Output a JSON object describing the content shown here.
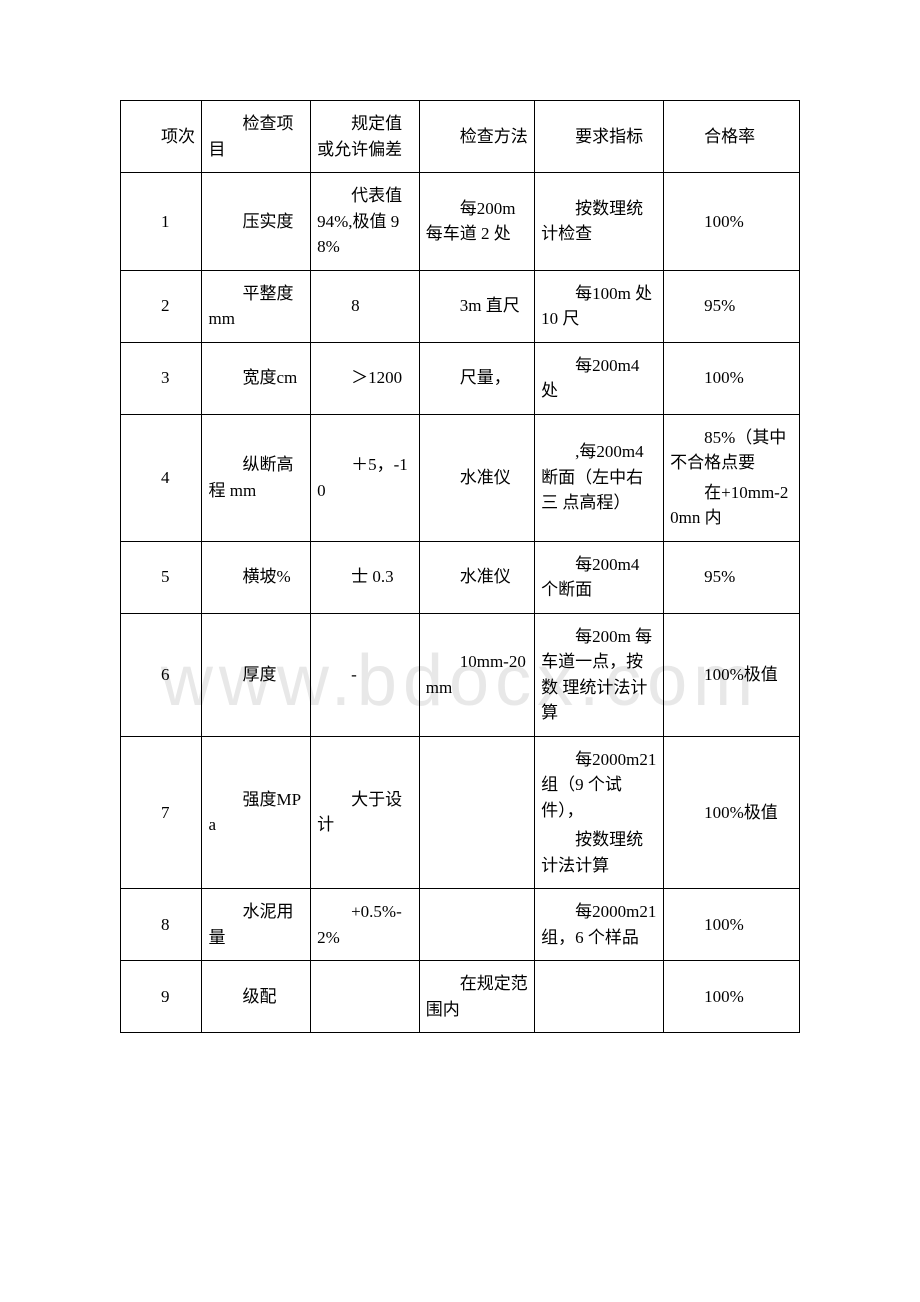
{
  "watermark": "www.bdocx.com",
  "table": {
    "columns": [
      {
        "key": "idx",
        "label": "项次",
        "class": "col-idx"
      },
      {
        "key": "item",
        "label": "检查项目",
        "class": "col-item"
      },
      {
        "key": "spec",
        "label": "规定值或允许偏差",
        "class": "col-spec"
      },
      {
        "key": "method",
        "label": "检查方法",
        "class": "col-method"
      },
      {
        "key": "req",
        "label": "要求指标",
        "class": "col-req"
      },
      {
        "key": "pass",
        "label": "合格率",
        "class": "col-pass"
      }
    ],
    "rows": [
      {
        "idx": "1",
        "item": "压实度",
        "spec": "代表值 94%,极值 98%",
        "method": "每200m 每车道 2 处",
        "req": "按数理统计检查",
        "pass": "100%"
      },
      {
        "idx": "2",
        "item": "平整度 mm",
        "spec": "8",
        "method": "3m 直尺",
        "req": "每100m 处10 尺",
        "pass": "95%"
      },
      {
        "idx": "3",
        "item": "宽度cm",
        "spec": "＞1200",
        "method": "尺量，",
        "req": "每200m4 处",
        "pass": "100%"
      },
      {
        "idx": "4",
        "item": "纵断高程 mm",
        "spec": "＋5，-10",
        "method": "水准仪",
        "req": ",每200m4 断面（左中右三 点高程）",
        "pass": "85%（其中不合格点要\n在+10mm-20mn 内"
      },
      {
        "idx": "5",
        "item": "横坡%",
        "spec": "士 0.3",
        "method": "水准仪",
        "req": "每200m4 个断面",
        "pass": "95%"
      },
      {
        "idx": "6",
        "item": "厚度",
        "spec": "-",
        "method": "10mm-20mm",
        "req": "每200m 每车道一点，按数 理统计法计算",
        "pass": "100%极值"
      },
      {
        "idx": "7",
        "item": "强度MPa",
        "spec": "大于设计",
        "method": "",
        "req": "每2000m21组（9 个试件），\n按数理统计法计算",
        "pass": "100%极值"
      },
      {
        "idx": "8",
        "item": "水泥用量",
        "spec": "+0.5%-2%",
        "method": "",
        "req": "每2000m21组，6 个样品",
        "pass": "100%"
      },
      {
        "idx": "9",
        "item": "级配",
        "spec": "",
        "method": "在规定范围内",
        "req": "",
        "pass": "100%"
      }
    ]
  }
}
